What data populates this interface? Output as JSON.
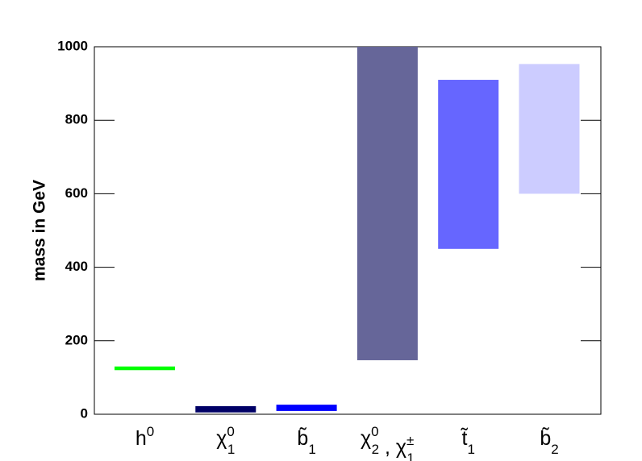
{
  "chart_data": {
    "type": "range-bar",
    "y_label": "mass in GeV",
    "categories": [
      [
        {
          "text": "h",
          "sup": "0"
        }
      ],
      [
        {
          "text": "χ",
          "sup": "0",
          "sub": "1"
        }
      ],
      [
        {
          "text": "b̃",
          "sub": "1"
        }
      ],
      [
        {
          "text": "χ",
          "sup": "0",
          "sub": "2"
        },
        {
          "text": " , "
        },
        {
          "text": "χ",
          "sup": "±",
          "sub": "1"
        }
      ],
      [
        {
          "text": "t̃",
          "sub": "1"
        }
      ],
      [
        {
          "text": "b̃",
          "sub": "2"
        }
      ]
    ],
    "values": [
      [
        120,
        130
      ],
      [
        5,
        22
      ],
      [
        9,
        26
      ],
      [
        147,
        1000
      ],
      [
        450,
        910
      ],
      [
        600,
        953
      ]
    ],
    "colors": [
      "#00ff00",
      "#000066",
      "#0000ff",
      "#666699",
      "#6666ff",
      "#ccccff"
    ],
    "ylim": [
      0,
      1000
    ],
    "yticks": [
      0,
      200,
      400,
      600,
      800,
      1000
    ]
  }
}
